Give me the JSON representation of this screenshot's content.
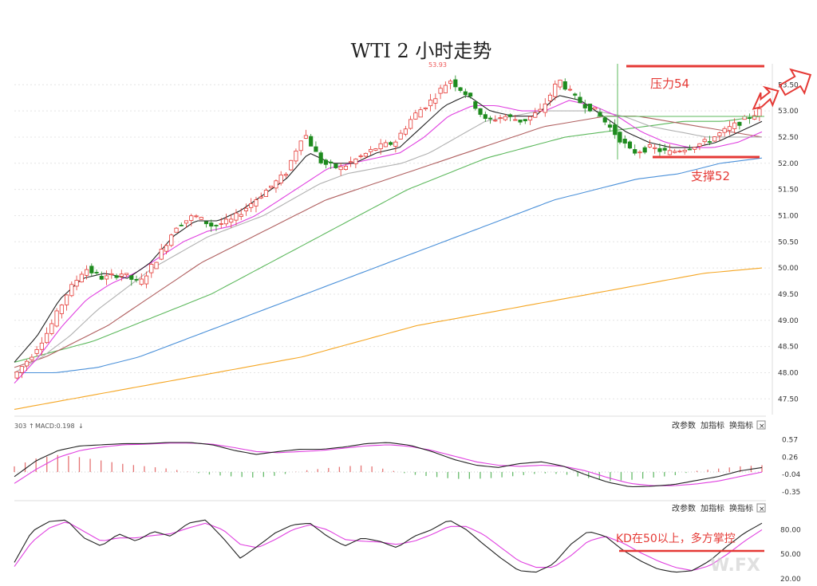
{
  "title": "WTI 2 小时走势",
  "annotations": {
    "resistance_label": "压力54",
    "support_label": "支撑52",
    "kd_note": "KD在50以上，多方掌控",
    "peak_value": "53.93",
    "watermark": "W.FX"
  },
  "controls": {
    "macd_header_num": "303",
    "macd_header": "MACD:0.198",
    "edit_params": "改参数",
    "add_indicator": "加指标",
    "switch_indicator": "换指标",
    "close_glyph": "×"
  },
  "colors": {
    "up": "#e53935",
    "down": "#1e8b1e",
    "ma_black": "#222222",
    "ma_magenta": "#e040e0",
    "ma_gray": "#b0b0b0",
    "ma_brown": "#b06060",
    "ma_green": "#5cb85c",
    "ma_blue": "#4a90d9",
    "ma_orange": "#f5a623",
    "annotation_red": "#e53935"
  },
  "chart_data": [
    {
      "type": "candlestick",
      "title": "WTI 2 小时走势",
      "y_ticks": [
        "53.50",
        "53.00",
        "52.50",
        "52.00",
        "51.50",
        "51.00",
        "50.50",
        "50.00",
        "49.50",
        "49.00",
        "48.50",
        "48.00",
        "47.50"
      ],
      "ylim": [
        47.2,
        53.9
      ],
      "resistance": 54,
      "support": 52,
      "close_path": [
        47.9,
        48.3,
        48.8,
        49.5,
        50.0,
        49.8,
        49.9,
        49.7,
        50.2,
        50.8,
        51.0,
        50.8,
        50.9,
        51.2,
        51.5,
        51.8,
        52.6,
        52.0,
        51.9,
        52.1,
        52.3,
        52.4,
        52.9,
        53.2,
        53.6,
        53.3,
        52.8,
        52.9,
        52.8,
        53.0,
        53.6,
        53.2,
        53.0,
        52.6,
        52.2,
        52.3,
        52.2,
        52.3,
        52.4,
        52.6,
        52.8,
        53.0
      ],
      "moving_averages": [
        {
          "name": "black",
          "values": [
            48.2,
            48.7,
            49.4,
            49.8,
            49.9,
            49.8,
            50.1,
            50.6,
            50.9,
            50.9,
            51.1,
            51.4,
            51.7,
            52.2,
            52.0,
            52.0,
            52.2,
            52.3,
            52.7,
            53.1,
            53.3,
            53.0,
            52.9,
            52.9,
            53.3,
            53.2,
            52.9,
            52.6,
            52.4,
            52.3,
            52.3,
            52.4,
            52.6,
            52.8
          ]
        },
        {
          "name": "magenta",
          "values": [
            47.8,
            48.3,
            48.9,
            49.4,
            49.7,
            49.9,
            50.2,
            50.5,
            50.7,
            50.8,
            51.0,
            51.3,
            51.6,
            51.9,
            52.0,
            52.1,
            52.2,
            52.5,
            52.9,
            53.1,
            53.1,
            53.0,
            53.0,
            53.2,
            53.1,
            52.9,
            52.6,
            52.4,
            52.3,
            52.3,
            52.4,
            52.6
          ]
        },
        {
          "name": "gray",
          "values": [
            48.0,
            48.3,
            48.7,
            49.2,
            49.6,
            50.0,
            50.3,
            50.6,
            50.8,
            51.0,
            51.3,
            51.6,
            51.8,
            51.9,
            52.0,
            52.2,
            52.5,
            52.8,
            52.9,
            53.0,
            53.0,
            53.0,
            52.9,
            52.7,
            52.6,
            52.5,
            52.5,
            52.5
          ]
        },
        {
          "name": "brown",
          "values": [
            48.1,
            48.3,
            48.6,
            48.9,
            49.3,
            49.7,
            50.1,
            50.4,
            50.7,
            51.0,
            51.3,
            51.5,
            51.7,
            51.9,
            52.1,
            52.3,
            52.5,
            52.7,
            52.8,
            52.9,
            52.9,
            52.8,
            52.7,
            52.6,
            52.5
          ]
        },
        {
          "name": "green",
          "values": [
            48.2,
            48.4,
            48.6,
            48.9,
            49.2,
            49.5,
            49.9,
            50.3,
            50.7,
            51.1,
            51.5,
            51.8,
            52.1,
            52.3,
            52.5,
            52.6,
            52.7,
            52.8,
            52.8,
            52.9
          ]
        },
        {
          "name": "blue",
          "values": [
            48.0,
            48.0,
            48.1,
            48.3,
            48.6,
            48.9,
            49.2,
            49.5,
            49.8,
            50.1,
            50.4,
            50.7,
            51.0,
            51.3,
            51.5,
            51.7,
            51.8,
            52.0,
            52.1
          ]
        },
        {
          "name": "orange",
          "values": [
            47.3,
            47.5,
            47.7,
            47.9,
            48.1,
            48.3,
            48.6,
            48.9,
            49.1,
            49.3,
            49.5,
            49.7,
            49.9,
            50.0
          ]
        }
      ]
    },
    {
      "type": "macd",
      "y_ticks": [
        "0.57",
        "0.26",
        "-0.04",
        "-0.35"
      ],
      "ylim": [
        -0.42,
        0.66
      ],
      "dif": [
        -0.08,
        0.2,
        0.38,
        0.46,
        0.48,
        0.5,
        0.5,
        0.52,
        0.52,
        0.48,
        0.38,
        0.31,
        0.36,
        0.4,
        0.4,
        0.44,
        0.5,
        0.52,
        0.47,
        0.36,
        0.22,
        0.12,
        0.08,
        0.15,
        0.18,
        0.1,
        -0.05,
        -0.18,
        -0.26,
        -0.25,
        -0.22,
        -0.15,
        -0.08,
        0.02,
        0.08
      ],
      "dea": [
        -0.2,
        0.05,
        0.26,
        0.38,
        0.44,
        0.48,
        0.49,
        0.51,
        0.51,
        0.49,
        0.43,
        0.36,
        0.34,
        0.36,
        0.38,
        0.42,
        0.46,
        0.48,
        0.45,
        0.38,
        0.28,
        0.18,
        0.12,
        0.1,
        0.12,
        0.1,
        0.02,
        -0.1,
        -0.2,
        -0.24,
        -0.24,
        -0.21,
        -0.16,
        -0.08,
        0.0
      ],
      "hist": [
        0.1,
        0.24,
        0.3,
        0.26,
        0.2,
        0.14,
        0.1,
        0.06,
        0.0,
        -0.05,
        -0.08,
        -0.1,
        -0.06,
        0.02,
        0.06,
        0.1,
        0.12,
        0.04,
        -0.04,
        -0.08,
        -0.12,
        -0.12,
        -0.1,
        -0.06,
        -0.02,
        -0.04,
        -0.1,
        -0.16,
        -0.14,
        -0.1,
        -0.06,
        0.02,
        0.06,
        0.1,
        0.12
      ]
    },
    {
      "type": "kd",
      "y_ticks": [
        "80.00",
        "50.00",
        "20.00"
      ],
      "ylim": [
        18,
        96
      ],
      "threshold": 50,
      "k": [
        40,
        78,
        90,
        92,
        70,
        60,
        75,
        66,
        78,
        72,
        88,
        92,
        70,
        45,
        60,
        76,
        86,
        88,
        72,
        60,
        70,
        66,
        58,
        72,
        80,
        92,
        80,
        62,
        45,
        30,
        28,
        38,
        62,
        78,
        72,
        55,
        42,
        32,
        28,
        30,
        42,
        60,
        76,
        88
      ],
      "d": [
        35,
        65,
        82,
        90,
        78,
        66,
        70,
        70,
        73,
        75,
        82,
        88,
        80,
        62,
        58,
        68,
        80,
        86,
        80,
        68,
        66,
        65,
        62,
        66,
        74,
        84,
        84,
        74,
        58,
        42,
        34,
        34,
        48,
        66,
        72,
        64,
        52,
        42,
        34,
        30,
        36,
        50,
        66,
        80
      ]
    }
  ]
}
